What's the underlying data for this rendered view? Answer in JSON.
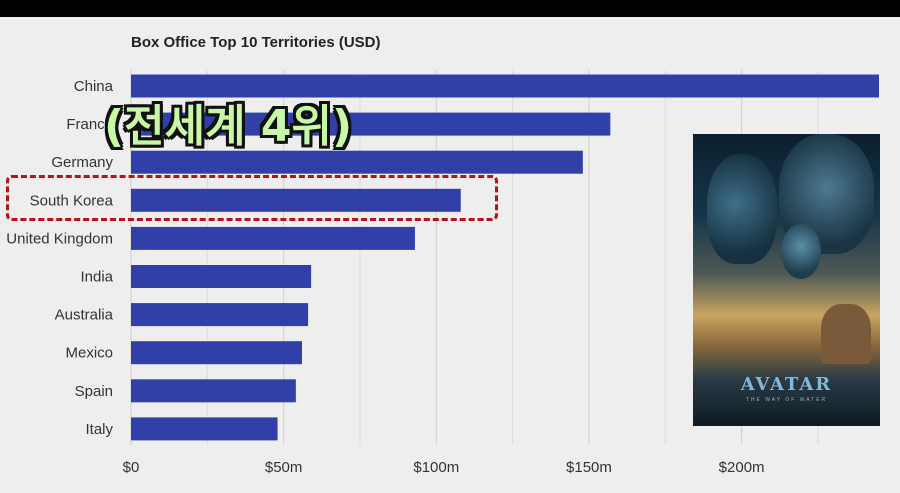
{
  "chart_data": {
    "type": "bar",
    "orientation": "horizontal",
    "title": "Box Office Top 10 Territories (USD)",
    "categories": [
      "China",
      "France",
      "Germany",
      "South Korea",
      "United Kingdom",
      "India",
      "Australia",
      "Mexico",
      "Spain",
      "Italy"
    ],
    "values": [
      245,
      157,
      148,
      108,
      93,
      59,
      58,
      56,
      54,
      48
    ],
    "xlim": [
      0,
      245
    ],
    "x_ticks": [
      0,
      50,
      100,
      150,
      200
    ],
    "x_tick_labels": [
      "$0",
      "$50m",
      "$100m",
      "$150m",
      "$200m"
    ],
    "grid": "vertical",
    "bar_color": "#3040a8",
    "highlighted_category": "South Korea",
    "highlight_color": "#b5121b"
  },
  "overlay": {
    "caption": "(전세계 4위)",
    "caption_color": "#c9f7a8"
  },
  "poster": {
    "title": "AVATAR",
    "subtitle": "THE WAY OF WATER"
  }
}
